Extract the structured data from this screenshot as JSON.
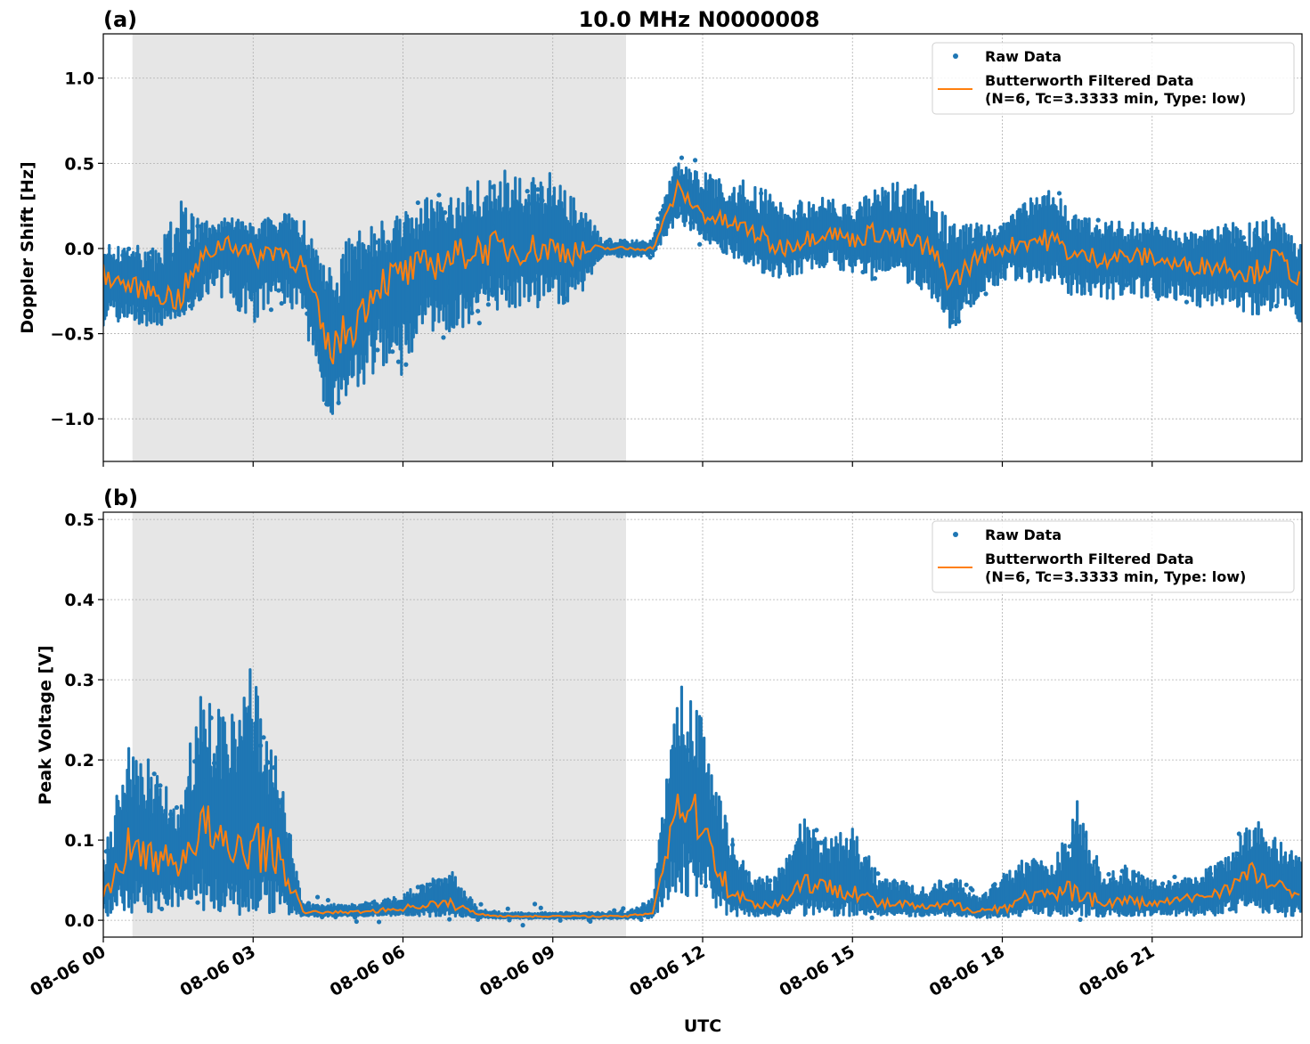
{
  "chart_data": [
    {
      "panel_label": "(a)",
      "title": "10.0 MHz N0000008",
      "type": "scatter",
      "xlabel": "",
      "ylabel": "Doppler Shift [Hz]",
      "ylim": [
        -1.25,
        1.26
      ],
      "yticks": [
        "−1.0",
        "−0.5",
        "0.0",
        "0.5",
        "1.0"
      ],
      "ytick_values": [
        -1.0,
        -0.5,
        0.0,
        0.5,
        1.0
      ],
      "grid": true,
      "shaded_span": [
        "08-06 00:35",
        "08-06 10:28"
      ],
      "legend": {
        "placement": "top-right",
        "entries": [
          "Raw Data",
          "Butterworth Filtered Data",
          "(N=6, Tc=3.3333 min, Type: low)"
        ]
      },
      "series_colors": {
        "raw": "#1f77b4",
        "filtered": "#ff7f0e"
      },
      "x": [
        "00:00",
        "00:30",
        "01:00",
        "01:30",
        "02:00",
        "02:30",
        "03:00",
        "03:30",
        "04:00",
        "04:30",
        "05:00",
        "05:30",
        "06:00",
        "06:30",
        "07:00",
        "07:30",
        "08:00",
        "08:30",
        "09:00",
        "09:30",
        "10:00",
        "10:30",
        "11:00",
        "11:30",
        "12:00",
        "12:30",
        "13:00",
        "13:30",
        "14:00",
        "14:30",
        "15:00",
        "15:30",
        "16:00",
        "16:30",
        "17:00",
        "17:30",
        "18:00",
        "18:30",
        "19:00",
        "19:30",
        "20:00",
        "20:30",
        "21:00",
        "21:30",
        "22:00",
        "22:30",
        "23:00",
        "23:30",
        "24:00"
      ],
      "filtered": [
        -0.15,
        -0.22,
        -0.25,
        -0.3,
        -0.05,
        0.05,
        -0.05,
        0.0,
        -0.1,
        -0.6,
        -0.45,
        -0.2,
        -0.15,
        -0.1,
        -0.05,
        0.0,
        0.0,
        0.0,
        0.0,
        -0.02,
        0.0,
        0.0,
        0.0,
        0.35,
        0.2,
        0.15,
        0.1,
        0.0,
        0.05,
        0.1,
        0.05,
        0.1,
        0.05,
        0.0,
        -0.2,
        -0.05,
        0.0,
        0.05,
        0.05,
        -0.05,
        -0.05,
        -0.05,
        -0.05,
        -0.1,
        -0.1,
        -0.1,
        -0.15,
        -0.05,
        -0.2
      ],
      "raw_min": [
        -0.45,
        -0.45,
        -0.45,
        -0.45,
        -0.3,
        -0.3,
        -0.45,
        -0.3,
        -0.4,
        -1.05,
        -0.9,
        -0.7,
        -0.75,
        -0.5,
        -0.5,
        -0.4,
        -0.35,
        -0.35,
        -0.35,
        -0.3,
        -0.05,
        -0.05,
        -0.05,
        0.15,
        0.05,
        -0.05,
        -0.1,
        -0.2,
        -0.15,
        -0.1,
        -0.15,
        -0.2,
        -0.2,
        -0.25,
        -0.5,
        -0.3,
        -0.2,
        -0.2,
        -0.2,
        -0.3,
        -0.3,
        -0.3,
        -0.3,
        -0.3,
        -0.35,
        -0.35,
        -0.4,
        -0.35,
        -0.45
      ],
      "raw_max": [
        0.05,
        0.05,
        0.0,
        0.3,
        0.15,
        0.2,
        0.15,
        0.2,
        0.2,
        -0.1,
        0.1,
        0.15,
        0.2,
        0.3,
        0.3,
        0.4,
        0.5,
        0.4,
        0.45,
        0.3,
        0.05,
        0.05,
        0.05,
        0.55,
        0.45,
        0.4,
        0.4,
        0.3,
        0.3,
        0.3,
        0.25,
        0.35,
        0.4,
        0.35,
        0.15,
        0.15,
        0.15,
        0.3,
        0.35,
        0.2,
        0.2,
        0.15,
        0.15,
        0.1,
        0.1,
        0.15,
        0.15,
        0.2,
        0.05
      ]
    },
    {
      "panel_label": "(b)",
      "type": "scatter",
      "xlabel": "UTC",
      "ylabel": "Peak Voltage [V]",
      "ylim": [
        -0.021,
        0.509
      ],
      "yticks": [
        "0.0",
        "0.1",
        "0.2",
        "0.3",
        "0.4",
        "0.5"
      ],
      "ytick_values": [
        0.0,
        0.1,
        0.2,
        0.3,
        0.4,
        0.5
      ],
      "grid": true,
      "shaded_span": [
        "08-06 00:35",
        "08-06 10:28"
      ],
      "legend": {
        "placement": "top-right",
        "entries": [
          "Raw Data",
          "Butterworth Filtered Data",
          "(N=6, Tc=3.3333 min, Type: low)"
        ]
      },
      "series_colors": {
        "raw": "#1f77b4",
        "filtered": "#ff7f0e"
      },
      "xticks": [
        "08-06 00",
        "08-06 03",
        "08-06 06",
        "08-06 09",
        "08-06 12",
        "08-06 15",
        "08-06 18",
        "08-06 21"
      ],
      "x": [
        "00:00",
        "00:30",
        "01:00",
        "01:30",
        "02:00",
        "02:30",
        "03:00",
        "03:30",
        "04:00",
        "04:30",
        "05:00",
        "05:30",
        "06:00",
        "06:30",
        "07:00",
        "07:30",
        "08:00",
        "08:30",
        "09:00",
        "09:30",
        "10:00",
        "10:30",
        "11:00",
        "11:30",
        "12:00",
        "12:30",
        "13:00",
        "13:30",
        "14:00",
        "14:30",
        "15:00",
        "15:30",
        "16:00",
        "16:30",
        "17:00",
        "17:30",
        "18:00",
        "18:30",
        "19:00",
        "19:30",
        "20:00",
        "20:30",
        "21:00",
        "21:30",
        "22:00",
        "22:30",
        "23:00",
        "23:30",
        "24:00"
      ],
      "filtered": [
        0.03,
        0.09,
        0.08,
        0.07,
        0.12,
        0.08,
        0.1,
        0.08,
        0.01,
        0.01,
        0.01,
        0.012,
        0.015,
        0.02,
        0.02,
        0.008,
        0.005,
        0.005,
        0.005,
        0.005,
        0.005,
        0.005,
        0.01,
        0.15,
        0.12,
        0.04,
        0.02,
        0.02,
        0.05,
        0.04,
        0.04,
        0.02,
        0.02,
        0.015,
        0.02,
        0.012,
        0.015,
        0.03,
        0.03,
        0.04,
        0.02,
        0.025,
        0.02,
        0.025,
        0.03,
        0.04,
        0.06,
        0.04,
        0.03
      ],
      "raw_min": [
        0.005,
        0.01,
        0.01,
        0.01,
        0.01,
        0.005,
        0.005,
        0.01,
        0.005,
        0.005,
        0.005,
        0.005,
        0.005,
        0.005,
        0.005,
        0.003,
        0.002,
        0.002,
        0.002,
        0.002,
        0.002,
        0.002,
        0.003,
        0.03,
        0.03,
        0.005,
        0.005,
        0.005,
        0.005,
        0.005,
        0.005,
        0.005,
        0.005,
        0.005,
        0.005,
        0.003,
        0.003,
        0.005,
        0.005,
        0.005,
        0.005,
        0.005,
        0.005,
        0.005,
        0.005,
        0.005,
        0.01,
        0.005,
        0.005
      ],
      "raw_max": [
        0.08,
        0.22,
        0.2,
        0.15,
        0.3,
        0.25,
        0.33,
        0.2,
        0.02,
        0.02,
        0.02,
        0.025,
        0.035,
        0.05,
        0.06,
        0.015,
        0.01,
        0.01,
        0.01,
        0.01,
        0.01,
        0.01,
        0.03,
        0.3,
        0.25,
        0.12,
        0.05,
        0.06,
        0.13,
        0.1,
        0.12,
        0.06,
        0.05,
        0.04,
        0.06,
        0.03,
        0.06,
        0.08,
        0.07,
        0.15,
        0.06,
        0.07,
        0.05,
        0.05,
        0.06,
        0.08,
        0.13,
        0.1,
        0.08
      ]
    }
  ]
}
